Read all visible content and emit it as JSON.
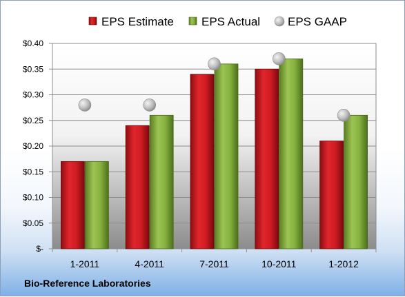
{
  "chart_data": {
    "type": "bar",
    "categories": [
      "1-2011",
      "4-2011",
      "7-2011",
      "10-2011",
      "1-2012"
    ],
    "series": [
      {
        "name": "EPS Estimate",
        "values": [
          0.17,
          0.24,
          0.34,
          0.35,
          0.21
        ],
        "color": "#c8161d",
        "mark": "bar"
      },
      {
        "name": "EPS Actual",
        "values": [
          0.17,
          0.26,
          0.36,
          0.37,
          0.26
        ],
        "color": "#7faa3a",
        "mark": "bar"
      },
      {
        "name": "EPS GAAP",
        "values": [
          0.28,
          0.28,
          0.36,
          0.37,
          0.26
        ],
        "color": "#b8b8b8",
        "mark": "circle"
      }
    ],
    "yticks": [
      "$-",
      "$0.05",
      "$0.10",
      "$0.15",
      "$0.20",
      "$0.25",
      "$0.30",
      "$0.35",
      "$0.40"
    ],
    "ylim": [
      0,
      0.4
    ],
    "grid": true,
    "legend_position": "top",
    "title": "",
    "xlabel": "",
    "ylabel": ""
  },
  "footer": {
    "company": "Bio-Reference Laboratories"
  }
}
